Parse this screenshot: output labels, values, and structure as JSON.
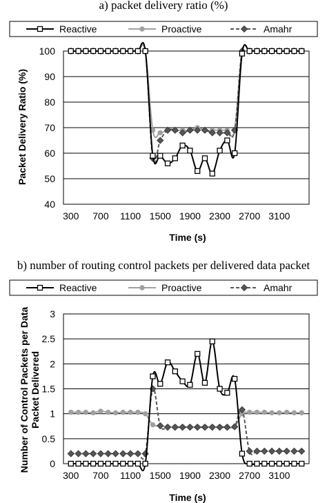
{
  "chart_data": [
    {
      "type": "line",
      "title": "a) packet delivery ratio (%)",
      "xlabel": "Time (s)",
      "ylabel": "Packet Delivery Ratio (%)",
      "xlim": [
        200,
        3500
      ],
      "ylim": [
        40,
        100
      ],
      "x_ticks": [
        "300",
        "700",
        "1100",
        "1500",
        "1900",
        "2300",
        "2700",
        "3100"
      ],
      "y_ticks": [
        "40",
        "50",
        "60",
        "70",
        "80",
        "90",
        "100"
      ],
      "grid": "horizontal",
      "legend": "top",
      "x": [
        300,
        400,
        500,
        600,
        700,
        800,
        900,
        1000,
        1100,
        1200,
        1300,
        1400,
        1500,
        1600,
        1700,
        1800,
        1900,
        2000,
        2100,
        2200,
        2300,
        2400,
        2500,
        2600,
        2700,
        2800,
        2900,
        3000,
        3100,
        3200,
        3300,
        3400
      ],
      "series": [
        {
          "name": "Reactive",
          "color": "#000000",
          "marker": "square",
          "values": [
            100,
            100,
            100,
            100,
            100,
            100,
            100,
            100,
            100,
            100,
            100,
            59,
            59,
            56,
            58,
            63,
            61,
            53,
            58,
            52,
            61,
            65,
            60,
            99,
            100,
            100,
            100,
            100,
            100,
            100,
            100,
            100
          ]
        },
        {
          "name": "Proactive",
          "color": "#a0a0a0",
          "marker": "circle",
          "values": [
            100,
            100,
            100,
            100,
            100,
            100,
            100,
            100,
            100,
            100,
            100,
            69,
            68,
            69,
            69,
            69,
            69,
            70,
            69,
            69,
            69,
            69,
            69,
            100,
            100,
            100,
            100,
            100,
            100,
            100,
            100,
            100
          ]
        },
        {
          "name": "Amahr",
          "color": "#555555",
          "marker": "diamond",
          "values": [
            100,
            100,
            100,
            100,
            100,
            100,
            100,
            100,
            100,
            100,
            100,
            58,
            65,
            69,
            69,
            68,
            69,
            69,
            69,
            68,
            68,
            68,
            69,
            100,
            100,
            100,
            100,
            100,
            100,
            100,
            100,
            100
          ]
        }
      ]
    },
    {
      "type": "line",
      "title": "b) number of routing control packets per delivered data packet",
      "xlabel": "Time (s)",
      "ylabel": "Number of Control Packets per Data Packet Delivered",
      "ylabel_lines": [
        "Number of Control Packets per Data",
        "Packet Delivered"
      ],
      "xlim": [
        200,
        3500
      ],
      "ylim": [
        0,
        3
      ],
      "x_ticks": [
        "300",
        "700",
        "1100",
        "1500",
        "1900",
        "2300",
        "2700",
        "3100"
      ],
      "y_ticks": [
        "0",
        "0.5",
        "1",
        "1.5",
        "2",
        "2.5",
        "3"
      ],
      "grid": "horizontal",
      "legend": "top",
      "x": [
        300,
        400,
        500,
        600,
        700,
        800,
        900,
        1000,
        1100,
        1200,
        1300,
        1400,
        1500,
        1600,
        1700,
        1800,
        1900,
        2000,
        2100,
        2200,
        2300,
        2400,
        2500,
        2600,
        2700,
        2800,
        2900,
        3000,
        3100,
        3200,
        3300,
        3400
      ],
      "series": [
        {
          "name": "Reactive",
          "color": "#000000",
          "marker": "square",
          "values": [
            0,
            0,
            0,
            0,
            0,
            0,
            0,
            0,
            0,
            0,
            0,
            1.75,
            1.6,
            2.03,
            1.85,
            1.65,
            1.58,
            2.2,
            1.62,
            2.45,
            1.5,
            1.42,
            1.7,
            0.2,
            0,
            0,
            0,
            0,
            0,
            0,
            0,
            0
          ]
        },
        {
          "name": "Proactive",
          "color": "#a0a0a0",
          "marker": "circle",
          "values": [
            1.03,
            1.03,
            1.03,
            1.02,
            1.05,
            1.03,
            1.02,
            1.03,
            1.03,
            1.03,
            1.0,
            0.78,
            0.76,
            0.74,
            0.74,
            0.74,
            0.74,
            0.74,
            0.74,
            0.74,
            0.74,
            0.74,
            0.74,
            1.0,
            1.03,
            1.03,
            1.03,
            1.02,
            1.02,
            1.03,
            1.02,
            1.02
          ]
        },
        {
          "name": "Amahr",
          "color": "#555555",
          "marker": "diamond",
          "values": [
            0.2,
            0.2,
            0.2,
            0.2,
            0.2,
            0.2,
            0.2,
            0.2,
            0.2,
            0.2,
            0.2,
            1.5,
            0.76,
            0.73,
            0.73,
            0.73,
            0.73,
            0.73,
            0.73,
            0.73,
            0.73,
            0.73,
            0.74,
            1.08,
            0.25,
            0.25,
            0.25,
            0.25,
            0.25,
            0.25,
            0.25,
            0.25
          ]
        }
      ]
    }
  ]
}
